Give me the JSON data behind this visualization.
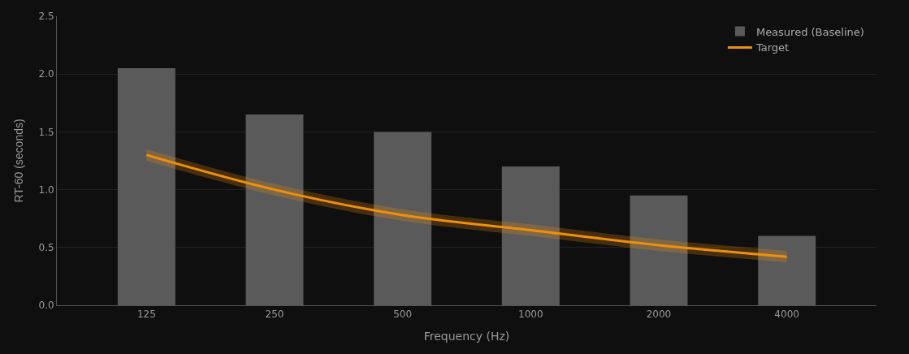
{
  "chart_data": {
    "type": "bar",
    "xlabel": "Frequency (Hz)",
    "ylabel": "RT-60 (seconds)",
    "categories": [
      "125",
      "250",
      "500",
      "1000",
      "2000",
      "4000"
    ],
    "series": [
      {
        "name": "Measured (Baseline)",
        "color": "#5a5a5a",
        "values": [
          2.05,
          1.65,
          1.5,
          1.2,
          0.95,
          0.6
        ]
      },
      {
        "name": "Target",
        "type": "line",
        "color": "#f0900a",
        "values": [
          1.3,
          1.0,
          0.78,
          0.65,
          0.52,
          0.42
        ],
        "lower": [
          1.25,
          0.95,
          0.73,
          0.6,
          0.47,
          0.37
        ],
        "upper": [
          1.35,
          1.05,
          0.83,
          0.7,
          0.57,
          0.47
        ]
      }
    ],
    "ylim": [
      0,
      2.5
    ],
    "yticks": [
      {
        "value": 0,
        "label": "0.0"
      },
      0.5,
      {
        "value": 1,
        "label": "1.0"
      },
      1.5,
      {
        "value": 2,
        "label": "2.0"
      },
      2.5
    ],
    "grid": "y",
    "legend": "top right",
    "marker": "none",
    "line_style": "solid"
  }
}
